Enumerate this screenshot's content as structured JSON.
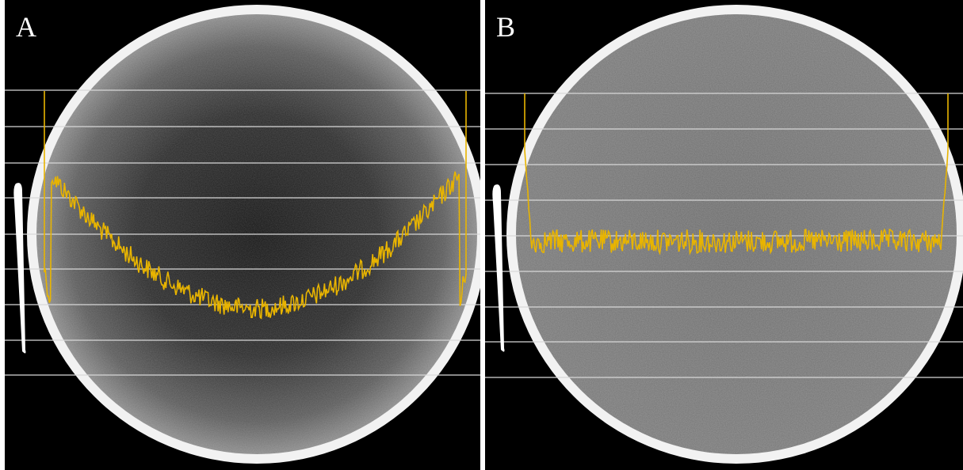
{
  "panels": [
    {
      "id": "A",
      "label": "A",
      "profile": "cupping"
    },
    {
      "id": "B",
      "label": "B",
      "profile": "flat"
    }
  ],
  "colors": {
    "background": "#000000",
    "phantom_ring": "#f2f2f2",
    "grid_lines": "#d8d8d8",
    "profile_line": "#e8b400"
  }
}
